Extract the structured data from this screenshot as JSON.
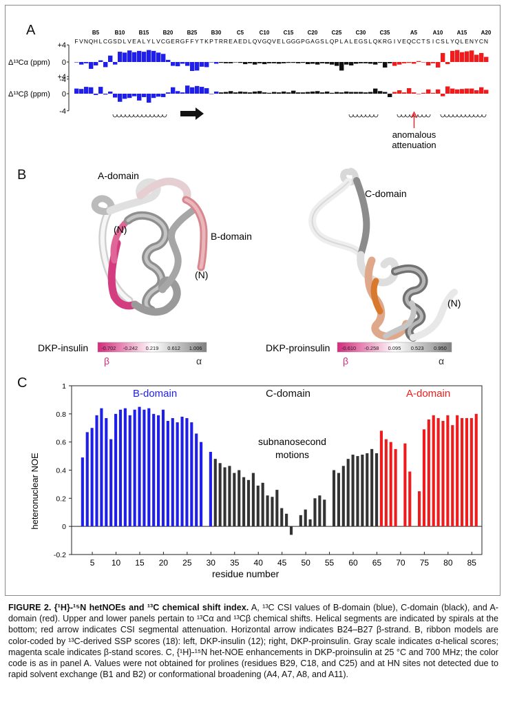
{
  "panel_a": {
    "letter": "A",
    "block_labels": [
      "B5",
      "B10",
      "B15",
      "B20",
      "B25",
      "B30",
      "C5",
      "C10",
      "C15",
      "C20",
      "C25",
      "C30",
      "C35",
      "A5",
      "A10",
      "A15",
      "A20"
    ],
    "sequence": {
      "b": "FVNQHLCGSDLVEALYLVCGERGFFYTKPT",
      "c": "RREAEDLQVGQVELGGGPGAGSLQPLALEGSLQKRG",
      "a": "IVEQCCTSICSLYQLENYCN"
    },
    "csi_alpha_label": "Δ¹³Cα (ppm)",
    "csi_beta_label": "Δ¹³Cβ (ppm)",
    "yticks": [
      "+4",
      "0",
      "-4"
    ],
    "annotation": "anomalous\nattenuation",
    "annotation_line1": "anomalous",
    "annotation_line2": "attenuation",
    "colors": {
      "b": "#1f1fe8",
      "c": "#111111",
      "a": "#ee1c1c"
    }
  },
  "panel_b": {
    "letter": "B",
    "left": {
      "labels": {
        "a_domain": "A-domain",
        "b_domain": "B-domain",
        "n1": "(N)",
        "n2": "(N)"
      },
      "scale_title": "DKP-insulin",
      "scale_values": [
        "-0.702",
        "-0.242",
        "0.219",
        "0.612",
        "1.006"
      ],
      "beta_symbol": "β",
      "alpha_symbol": "α"
    },
    "right": {
      "labels": {
        "c_domain": "C-domain",
        "n": "(N)"
      },
      "scale_title": "DKP-proinsulin",
      "scale_values": [
        "-0.610",
        "-0.258",
        "0.095",
        "0.523",
        "0.950"
      ],
      "beta_symbol": "β",
      "alpha_symbol": "α"
    }
  },
  "panel_c": {
    "letter": "C",
    "domain_labels": {
      "b": "B-domain",
      "c": "C-domain",
      "a": "A-domain"
    },
    "annotation_line1": "subnanosecond",
    "annotation_line2": "motions",
    "ylabel": "heteronuclear NOE",
    "xlabel": "residue number"
  },
  "chart_data": [
    {
      "type": "bar",
      "title": "",
      "panel": "A-upper",
      "ylabel": "Δ13Cα (ppm)",
      "ylim": [
        -4,
        4
      ],
      "x": [
        1,
        2,
        3,
        4,
        5,
        6,
        7,
        8,
        9,
        10,
        11,
        12,
        13,
        14,
        15,
        16,
        17,
        18,
        19,
        20,
        21,
        22,
        23,
        24,
        25,
        26,
        27,
        28,
        29,
        30,
        31,
        32,
        33,
        34,
        35,
        36,
        37,
        38,
        39,
        40,
        41,
        42,
        43,
        44,
        45,
        46,
        47,
        48,
        49,
        50,
        51,
        52,
        53,
        54,
        55,
        56,
        57,
        58,
        59,
        60,
        61,
        62,
        63,
        64,
        65,
        66,
        67,
        68,
        69,
        70,
        71,
        72,
        73,
        74,
        75,
        76,
        77,
        78,
        79,
        80,
        81,
        82,
        83,
        84,
        85,
        86
      ],
      "values": [
        0,
        -0.6,
        -0.3,
        -1.6,
        -0.8,
        0.4,
        -1.2,
        1.5,
        -0.6,
        2.4,
        2.2,
        2.7,
        2.3,
        2.6,
        2.4,
        2.8,
        2.6,
        2.2,
        1.9,
        0.5,
        -0.9,
        -1.0,
        -0.4,
        -0.9,
        -2.1,
        -2.0,
        -1.1,
        -1.2,
        0,
        -0.4,
        -0.2,
        -0.3,
        -0.3,
        -0.1,
        -0.2,
        -0.5,
        -0.3,
        -0.6,
        -0.3,
        -0.5,
        -0.3,
        -0.3,
        -0.4,
        -0.3,
        -0.2,
        -0.2,
        -0.3,
        -0.2,
        -0.5,
        -0.4,
        -0.6,
        -0.3,
        -0.4,
        -0.6,
        -0.9,
        -2.0,
        -0.6,
        -0.8,
        -0.4,
        -0.3,
        -0.3,
        -0.4,
        -0.6,
        -0.2,
        -1.3,
        -0.3,
        -0.9,
        -0.6,
        -0.3,
        -0.2,
        -0.4,
        0.2,
        0,
        -0.8,
        -0.3,
        -1.3,
        2.1,
        -0.5,
        2.6,
        2.8,
        2.3,
        2.5,
        2.7,
        1.7,
        2.1,
        1.2
      ],
      "series_colors": "B1-B30 blue, C1-C35 black, A1-A21 red"
    },
    {
      "type": "bar",
      "title": "",
      "panel": "A-lower",
      "ylabel": "Δ13Cβ (ppm)",
      "ylim": [
        -4,
        4
      ],
      "x": [
        1,
        2,
        3,
        4,
        5,
        6,
        7,
        8,
        9,
        10,
        11,
        12,
        13,
        14,
        15,
        16,
        17,
        18,
        19,
        20,
        21,
        22,
        23,
        24,
        25,
        26,
        27,
        28,
        29,
        30,
        31,
        32,
        33,
        34,
        35,
        36,
        37,
        38,
        39,
        40,
        41,
        42,
        43,
        44,
        45,
        46,
        47,
        48,
        49,
        50,
        51,
        52,
        53,
        54,
        55,
        56,
        57,
        58,
        59,
        60,
        61,
        62,
        63,
        64,
        65,
        66,
        67,
        68,
        69,
        70,
        71,
        72,
        73,
        74,
        75,
        76,
        77,
        78,
        79,
        80,
        81,
        82,
        83,
        84,
        85,
        86
      ],
      "values": [
        1.2,
        1.1,
        1.6,
        1.5,
        -0.3,
        1.6,
        -0.2,
        0.5,
        -0.9,
        -1.9,
        -1.2,
        -1.0,
        -0.6,
        -1.6,
        -0.8,
        -2.1,
        -1.0,
        -0.7,
        -0.8,
        0.3,
        1.5,
        0.6,
        0.3,
        1.9,
        1.5,
        1.8,
        1.6,
        1.3,
        0,
        0.5,
        0.3,
        0.4,
        0.6,
        0.3,
        0.5,
        0.4,
        0.3,
        0.5,
        0.6,
        0.3,
        0.2,
        0.4,
        0.3,
        0.5,
        0.3,
        0.7,
        0.3,
        0.3,
        0.4,
        0.5,
        0.6,
        0.3,
        0.5,
        0.2,
        0.4,
        0.3,
        0.5,
        0.4,
        0.4,
        0.4,
        0.3,
        0.4,
        1.2,
        0.6,
        0.4,
        -0.8,
        0.4,
        0.8,
        0.3,
        1.3,
        0.3,
        0,
        0.2,
        1.0,
        0.2,
        1.0,
        -0.6,
        1.7,
        1.2,
        1.0,
        1.1,
        1.2,
        1.2,
        0.8,
        1.5,
        0.9
      ],
      "series_colors": "B1-B30 blue, C1-C35 black, A1-A21 red"
    },
    {
      "type": "bar",
      "title": "",
      "panel": "C",
      "xlabel": "residue number",
      "ylabel": "heteronuclear NOE",
      "ylim": [
        -0.2,
        1
      ],
      "xlim": [
        1,
        87
      ],
      "xticks": [
        5,
        10,
        15,
        20,
        25,
        30,
        35,
        40,
        45,
        50,
        55,
        60,
        65,
        70,
        75,
        80,
        85
      ],
      "yticks": [
        -0.2,
        0,
        0.2,
        0.4,
        0.6,
        0.8,
        1
      ],
      "series": [
        {
          "name": "B-domain",
          "color": "#1f1fe8",
          "x": [
            3,
            4,
            5,
            6,
            7,
            8,
            9,
            10,
            11,
            12,
            13,
            14,
            15,
            16,
            17,
            18,
            19,
            20,
            21,
            22,
            23,
            24,
            25,
            26,
            27,
            28,
            30
          ],
          "values": [
            0.49,
            0.67,
            0.7,
            0.79,
            0.84,
            0.77,
            0.62,
            0.8,
            0.83,
            0.84,
            0.79,
            0.83,
            0.85,
            0.83,
            0.84,
            0.8,
            0.79,
            0.83,
            0.75,
            0.77,
            0.74,
            0.78,
            0.77,
            0.74,
            0.66,
            0.6,
            0.53
          ]
        },
        {
          "name": "C-domain",
          "color": "#333333",
          "x": [
            31,
            32,
            33,
            34,
            35,
            36,
            37,
            38,
            39,
            40,
            41,
            42,
            43,
            44,
            45,
            46,
            47,
            49,
            50,
            51,
            52,
            53,
            54,
            56,
            57,
            58,
            59,
            60,
            61,
            62,
            63,
            64,
            65
          ],
          "values": [
            0.48,
            0.45,
            0.42,
            0.43,
            0.38,
            0.4,
            0.35,
            0.33,
            0.38,
            0.29,
            0.31,
            0.22,
            0.21,
            0.26,
            0.13,
            0.09,
            -0.06,
            0.08,
            0.12,
            0.05,
            0.2,
            0.22,
            0.19,
            0.4,
            0.38,
            0.43,
            0.48,
            0.51,
            0.5,
            0.51,
            0.52,
            0.55,
            0.52
          ]
        },
        {
          "name": "A-domain",
          "color": "#ee1c1c",
          "x": [
            66,
            67,
            68,
            69,
            71,
            72,
            74,
            75,
            76,
            77,
            78,
            79,
            80,
            81,
            82,
            83,
            84,
            85,
            86
          ],
          "values": [
            0.68,
            0.62,
            0.6,
            0.55,
            0.59,
            0.39,
            0.25,
            0.69,
            0.76,
            0.79,
            0.77,
            0.75,
            0.79,
            0.72,
            0.79,
            0.77,
            0.77,
            0.77,
            0.8
          ]
        }
      ]
    }
  ],
  "caption": {
    "lead": "FIGURE 2. {¹H}-¹⁵N hetNOEs and ¹³C chemical shift index.",
    "text": " A, ¹³C CSI values of B-domain (blue), C-domain (black), and A-domain (red). Upper and lower panels pertain to ¹³Cα and ¹³Cβ chemical shifts. Helical segments are indicated by spirals at the bottom; red arrow indicates CSI segmental attenuation. Horizontal arrow indicates B24–B27 β-strand. B, ribbon models are color-coded by ¹³C-derived SSP scores (18): left, DKP-insulin (12); right, DKP-proinsulin. Gray scale indicates α-helical scores; magenta scale indicates β-stand scores. C, {¹H}-¹⁵N het-NOE enhancements in DKP-proinsulin at 25 °C and 700 MHz; the color code is as in panel A. Values were not obtained for prolines (residues B29, C18, and C25) and at HN sites not detected due to rapid solvent exchange (B1 and B2) or conformational broadening (A4, A7, A8, and A11)."
  }
}
